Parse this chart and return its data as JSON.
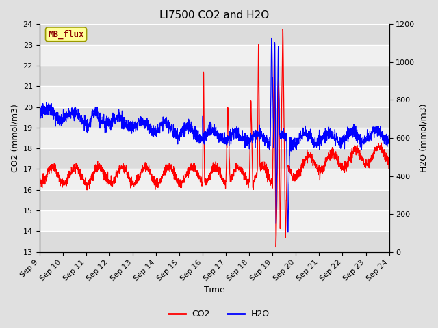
{
  "title": "LI7500 CO2 and H2O",
  "xlabel": "Time",
  "ylabel_left": "CO2 (mmol/m3)",
  "ylabel_right": "H2O (mmol/m3)",
  "watermark": "MB_flux",
  "co2_ylim": [
    13.0,
    24.0
  ],
  "h2o_ylim": [
    0,
    1200
  ],
  "co2_yticks": [
    13.0,
    14.0,
    15.0,
    16.0,
    17.0,
    18.0,
    19.0,
    20.0,
    21.0,
    22.0,
    23.0,
    24.0
  ],
  "h2o_yticks": [
    0,
    200,
    400,
    600,
    800,
    1000,
    1200
  ],
  "xtick_labels": [
    "Sep 9",
    "Sep 10",
    "Sep 11",
    "Sep 12",
    "Sep 13",
    "Sep 14",
    "Sep 15",
    "Sep 16",
    "Sep 17",
    "Sep 18",
    "Sep 19",
    "Sep 20",
    "Sep 21",
    "Sep 22",
    "Sep 23",
    "Sep 24"
  ],
  "co2_color": "#FF0000",
  "h2o_color": "#0000FF",
  "fig_bg_color": "#E0E0E0",
  "plot_bg_color": "#FFFFFF",
  "band_colors": [
    "#DCDCDC",
    "#F0F0F0"
  ],
  "title_fontsize": 11,
  "axis_fontsize": 9,
  "tick_fontsize": 8,
  "legend_fontsize": 9,
  "watermark_fontsize": 9,
  "watermark_text_color": "#8B0000",
  "watermark_box_color": "#FFFF99",
  "watermark_edge_color": "#999900"
}
